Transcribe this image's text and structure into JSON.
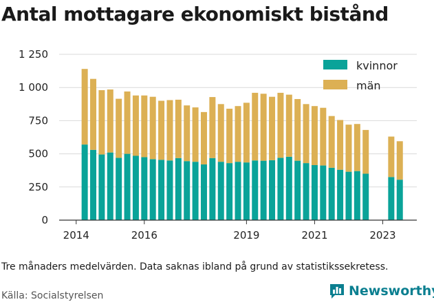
{
  "title": "Antal mottagare ekonomiskt bistånd",
  "note": "Tre månaders medelvärden. Data saknas ibland på grund av statistikssekretess.",
  "source": "Källa: Socialstyrelsen",
  "brand": "Newsworthy",
  "colors": {
    "kvinnor": "#0aa399",
    "man": "#dcb054",
    "grid": "#d9d9d9",
    "brand": "#0b7f90"
  },
  "icons": {
    "brand_logo": "bar-chart-speech-bubble-icon"
  },
  "chart_data": {
    "type": "bar",
    "stacked": true,
    "x_ticks": [
      "2014",
      "2016",
      "2019",
      "2021",
      "2023"
    ],
    "x_tick_positions": [
      2014,
      2016,
      2019,
      2021,
      2023
    ],
    "x_range": [
      2013.5,
      2024.0
    ],
    "y_ticks": [
      "0",
      "250",
      "500",
      "750",
      "1 000",
      "1 250"
    ],
    "y_tick_values": [
      0,
      250,
      500,
      750,
      1000,
      1250
    ],
    "ylim": [
      0,
      1250
    ],
    "legend_position": "top-right",
    "grid": true,
    "x": [
      2014.25,
      2014.5,
      2014.75,
      2015.0,
      2015.25,
      2015.5,
      2015.75,
      2016.0,
      2016.25,
      2016.5,
      2016.75,
      2017.0,
      2017.25,
      2017.5,
      2017.75,
      2018.0,
      2018.25,
      2018.5,
      2018.75,
      2019.0,
      2019.25,
      2019.5,
      2019.75,
      2020.0,
      2020.25,
      2020.5,
      2020.75,
      2021.0,
      2021.25,
      2021.5,
      2021.75,
      2022.0,
      2022.25,
      2022.5,
      2022.75,
      2023.0,
      2023.25,
      2023.5
    ],
    "series": [
      {
        "name": "kvinnor",
        "values": [
          570,
          530,
          495,
          510,
          470,
          500,
          485,
          475,
          460,
          455,
          450,
          468,
          445,
          440,
          420,
          468,
          440,
          430,
          440,
          435,
          450,
          448,
          452,
          470,
          478,
          448,
          430,
          415,
          412,
          395,
          380,
          365,
          370,
          350,
          null,
          null,
          325,
          305
        ]
      },
      {
        "name": "män",
        "values": [
          570,
          535,
          485,
          475,
          445,
          470,
          455,
          465,
          470,
          445,
          455,
          440,
          420,
          410,
          395,
          460,
          435,
          410,
          420,
          450,
          510,
          505,
          478,
          490,
          468,
          465,
          445,
          445,
          435,
          390,
          375,
          355,
          355,
          330,
          null,
          null,
          305,
          290
        ]
      }
    ]
  }
}
